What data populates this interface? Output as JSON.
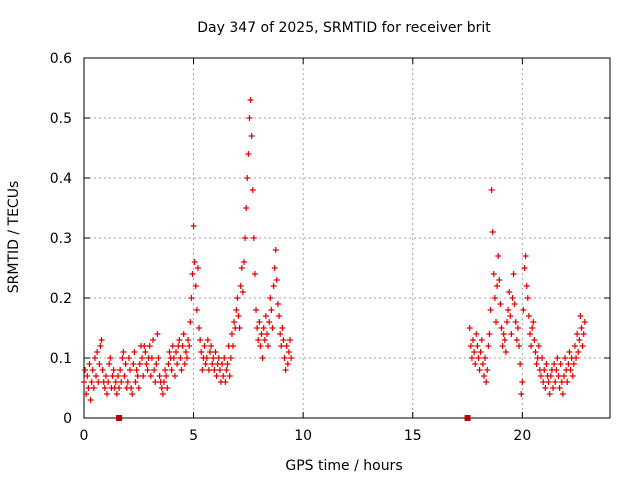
{
  "chart_data": {
    "type": "scatter",
    "title": "Day 347 of 2025, SRMTID for receiver brit",
    "xlabel": "GPS time / hours",
    "ylabel": "SRMTID / TECUs",
    "xlim": [
      0,
      24
    ],
    "ylim": [
      0,
      0.6
    ],
    "x_ticks": [
      0,
      5,
      10,
      15,
      20
    ],
    "x_tick_labels": [
      "0",
      "5",
      "10",
      "15",
      "20"
    ],
    "y_ticks": [
      0,
      0.1,
      0.2,
      0.3,
      0.4,
      0.5,
      0.6
    ],
    "y_tick_labels": [
      "0",
      "0.1",
      "0.2",
      "0.3",
      "0.4",
      "0.5",
      "0.6"
    ],
    "grid": true,
    "marker": "+",
    "color": "#e00000",
    "series": [
      {
        "name": "SRMTID",
        "points": [
          [
            0.0,
            0.06
          ],
          [
            0.05,
            0.08
          ],
          [
            0.1,
            0.04
          ],
          [
            0.15,
            0.07
          ],
          [
            0.2,
            0.05
          ],
          [
            0.25,
            0.09
          ],
          [
            0.3,
            0.03
          ],
          [
            0.35,
            0.06
          ],
          [
            0.4,
            0.08
          ],
          [
            0.45,
            0.05
          ],
          [
            0.5,
            0.1
          ],
          [
            0.55,
            0.07
          ],
          [
            0.6,
            0.11
          ],
          [
            0.65,
            0.06
          ],
          [
            0.7,
            0.09
          ],
          [
            0.75,
            0.12
          ],
          [
            0.8,
            0.13
          ],
          [
            0.85,
            0.08
          ],
          [
            0.9,
            0.06
          ],
          [
            0.95,
            0.05
          ],
          [
            1.0,
            0.07
          ],
          [
            1.05,
            0.04
          ],
          [
            1.1,
            0.06
          ],
          [
            1.15,
            0.09
          ],
          [
            1.2,
            0.1
          ],
          [
            1.25,
            0.05
          ],
          [
            1.3,
            0.07
          ],
          [
            1.35,
            0.08
          ],
          [
            1.4,
            0.05
          ],
          [
            1.45,
            0.06
          ],
          [
            1.5,
            0.04
          ],
          [
            1.55,
            0.07
          ],
          [
            1.6,
            0.05
          ],
          [
            1.65,
            0.08
          ],
          [
            1.7,
            0.06
          ],
          [
            1.75,
            0.1
          ],
          [
            1.8,
            0.11
          ],
          [
            1.85,
            0.07
          ],
          [
            1.9,
            0.09
          ],
          [
            1.95,
            0.05
          ],
          [
            2.0,
            0.06
          ],
          [
            2.05,
            0.1
          ],
          [
            2.1,
            0.08
          ],
          [
            2.15,
            0.05
          ],
          [
            2.2,
            0.04
          ],
          [
            2.25,
            0.09
          ],
          [
            2.3,
            0.11
          ],
          [
            2.35,
            0.06
          ],
          [
            2.4,
            0.08
          ],
          [
            2.45,
            0.07
          ],
          [
            2.5,
            0.05
          ],
          [
            2.55,
            0.09
          ],
          [
            2.6,
            0.12
          ],
          [
            2.65,
            0.1
          ],
          [
            2.7,
            0.07
          ],
          [
            2.75,
            0.12
          ],
          [
            2.8,
            0.11
          ],
          [
            2.85,
            0.09
          ],
          [
            2.9,
            0.08
          ],
          [
            2.95,
            0.1
          ],
          [
            3.0,
            0.12
          ],
          [
            3.05,
            0.07
          ],
          [
            3.1,
            0.1
          ],
          [
            3.15,
            0.13
          ],
          [
            3.2,
            0.08
          ],
          [
            3.25,
            0.06
          ],
          [
            3.3,
            0.09
          ],
          [
            3.35,
            0.14
          ],
          [
            3.4,
            0.1
          ],
          [
            3.45,
            0.07
          ],
          [
            3.5,
            0.06
          ],
          [
            3.55,
            0.05
          ],
          [
            3.6,
            0.04
          ],
          [
            3.65,
            0.06
          ],
          [
            3.7,
            0.08
          ],
          [
            3.75,
            0.07
          ],
          [
            3.8,
            0.05
          ],
          [
            3.85,
            0.09
          ],
          [
            3.9,
            0.11
          ],
          [
            3.95,
            0.1
          ],
          [
            4.0,
            0.08
          ],
          [
            4.05,
            0.12
          ],
          [
            4.1,
            0.1
          ],
          [
            4.15,
            0.07
          ],
          [
            4.2,
            0.11
          ],
          [
            4.25,
            0.09
          ],
          [
            4.3,
            0.12
          ],
          [
            4.35,
            0.13
          ],
          [
            4.4,
            0.1
          ],
          [
            4.45,
            0.08
          ],
          [
            4.5,
            0.12
          ],
          [
            4.55,
            0.14
          ],
          [
            4.6,
            0.09
          ],
          [
            4.65,
            0.11
          ],
          [
            4.7,
            0.1
          ],
          [
            4.75,
            0.13
          ],
          [
            4.8,
            0.12
          ],
          [
            4.85,
            0.16
          ],
          [
            4.9,
            0.2
          ],
          [
            4.95,
            0.24
          ],
          [
            5.0,
            0.32
          ],
          [
            5.05,
            0.26
          ],
          [
            5.1,
            0.22
          ],
          [
            5.15,
            0.18
          ],
          [
            5.2,
            0.25
          ],
          [
            5.25,
            0.15
          ],
          [
            5.3,
            0.13
          ],
          [
            5.35,
            0.11
          ],
          [
            5.4,
            0.08
          ],
          [
            5.45,
            0.1
          ],
          [
            5.5,
            0.12
          ],
          [
            5.55,
            0.09
          ],
          [
            5.6,
            0.1
          ],
          [
            5.65,
            0.13
          ],
          [
            5.7,
            0.08
          ],
          [
            5.75,
            0.11
          ],
          [
            5.8,
            0.12
          ],
          [
            5.85,
            0.09
          ],
          [
            5.9,
            0.1
          ],
          [
            5.95,
            0.08
          ],
          [
            6.0,
            0.11
          ],
          [
            6.05,
            0.07
          ],
          [
            6.1,
            0.09
          ],
          [
            6.15,
            0.1
          ],
          [
            6.2,
            0.08
          ],
          [
            6.25,
            0.06
          ],
          [
            6.3,
            0.09
          ],
          [
            6.35,
            0.07
          ],
          [
            6.4,
            0.1
          ],
          [
            6.45,
            0.06
          ],
          [
            6.5,
            0.08
          ],
          [
            6.55,
            0.09
          ],
          [
            6.6,
            0.12
          ],
          [
            6.65,
            0.07
          ],
          [
            6.7,
            0.1
          ],
          [
            6.75,
            0.14
          ],
          [
            6.8,
            0.12
          ],
          [
            6.85,
            0.16
          ],
          [
            6.9,
            0.15
          ],
          [
            6.95,
            0.18
          ],
          [
            7.0,
            0.2
          ],
          [
            7.05,
            0.17
          ],
          [
            7.1,
            0.15
          ],
          [
            7.15,
            0.22
          ],
          [
            7.2,
            0.25
          ],
          [
            7.25,
            0.21
          ],
          [
            7.3,
            0.26
          ],
          [
            7.35,
            0.3
          ],
          [
            7.4,
            0.35
          ],
          [
            7.45,
            0.4
          ],
          [
            7.5,
            0.44
          ],
          [
            7.55,
            0.5
          ],
          [
            7.6,
            0.53
          ],
          [
            7.65,
            0.47
          ],
          [
            7.7,
            0.38
          ],
          [
            7.75,
            0.3
          ],
          [
            7.8,
            0.24
          ],
          [
            7.85,
            0.18
          ],
          [
            7.9,
            0.15
          ],
          [
            7.95,
            0.13
          ],
          [
            8.0,
            0.16
          ],
          [
            8.05,
            0.12
          ],
          [
            8.1,
            0.14
          ],
          [
            8.15,
            0.1
          ],
          [
            8.2,
            0.15
          ],
          [
            8.25,
            0.13
          ],
          [
            8.3,
            0.17
          ],
          [
            8.35,
            0.14
          ],
          [
            8.4,
            0.12
          ],
          [
            8.45,
            0.16
          ],
          [
            8.5,
            0.2
          ],
          [
            8.55,
            0.18
          ],
          [
            8.6,
            0.15
          ],
          [
            8.65,
            0.22
          ],
          [
            8.7,
            0.25
          ],
          [
            8.75,
            0.28
          ],
          [
            8.8,
            0.23
          ],
          [
            8.85,
            0.19
          ],
          [
            8.9,
            0.17
          ],
          [
            8.95,
            0.14
          ],
          [
            9.0,
            0.12
          ],
          [
            9.05,
            0.15
          ],
          [
            9.1,
            0.13
          ],
          [
            9.15,
            0.1
          ],
          [
            9.2,
            0.08
          ],
          [
            9.25,
            0.12
          ],
          [
            9.3,
            0.09
          ],
          [
            9.35,
            0.11
          ],
          [
            9.4,
            0.13
          ],
          [
            9.45,
            0.1
          ],
          [
            17.6,
            0.15
          ],
          [
            17.65,
            0.12
          ],
          [
            17.7,
            0.1
          ],
          [
            17.75,
            0.13
          ],
          [
            17.8,
            0.11
          ],
          [
            17.85,
            0.09
          ],
          [
            17.9,
            0.14
          ],
          [
            17.95,
            0.12
          ],
          [
            18.0,
            0.1
          ],
          [
            18.05,
            0.08
          ],
          [
            18.1,
            0.11
          ],
          [
            18.15,
            0.13
          ],
          [
            18.2,
            0.09
          ],
          [
            18.25,
            0.07
          ],
          [
            18.3,
            0.1
          ],
          [
            18.35,
            0.06
          ],
          [
            18.4,
            0.08
          ],
          [
            18.45,
            0.12
          ],
          [
            18.5,
            0.14
          ],
          [
            18.55,
            0.18
          ],
          [
            18.6,
            0.38
          ],
          [
            18.65,
            0.31
          ],
          [
            18.7,
            0.24
          ],
          [
            18.75,
            0.2
          ],
          [
            18.8,
            0.16
          ],
          [
            18.85,
            0.22
          ],
          [
            18.9,
            0.27
          ],
          [
            18.95,
            0.23
          ],
          [
            19.0,
            0.19
          ],
          [
            19.05,
            0.15
          ],
          [
            19.1,
            0.12
          ],
          [
            19.15,
            0.14
          ],
          [
            19.2,
            0.13
          ],
          [
            19.25,
            0.11
          ],
          [
            19.3,
            0.16
          ],
          [
            19.35,
            0.18
          ],
          [
            19.4,
            0.21
          ],
          [
            19.45,
            0.17
          ],
          [
            19.5,
            0.14
          ],
          [
            19.55,
            0.2
          ],
          [
            19.6,
            0.24
          ],
          [
            19.65,
            0.19
          ],
          [
            19.7,
            0.16
          ],
          [
            19.75,
            0.13
          ],
          [
            19.8,
            0.15
          ],
          [
            19.85,
            0.12
          ],
          [
            19.9,
            0.09
          ],
          [
            19.95,
            0.04
          ],
          [
            20.0,
            0.06
          ],
          [
            20.05,
            0.18
          ],
          [
            20.1,
            0.25
          ],
          [
            20.15,
            0.27
          ],
          [
            20.2,
            0.22
          ],
          [
            20.25,
            0.2
          ],
          [
            20.3,
            0.17
          ],
          [
            20.35,
            0.14
          ],
          [
            20.4,
            0.12
          ],
          [
            20.45,
            0.15
          ],
          [
            20.5,
            0.16
          ],
          [
            20.55,
            0.13
          ],
          [
            20.6,
            0.11
          ],
          [
            20.65,
            0.09
          ],
          [
            20.7,
            0.1
          ],
          [
            20.75,
            0.12
          ],
          [
            20.8,
            0.08
          ],
          [
            20.85,
            0.07
          ],
          [
            20.9,
            0.1
          ],
          [
            20.95,
            0.06
          ],
          [
            21.0,
            0.08
          ],
          [
            21.05,
            0.05
          ],
          [
            21.1,
            0.09
          ],
          [
            21.15,
            0.07
          ],
          [
            21.2,
            0.06
          ],
          [
            21.25,
            0.04
          ],
          [
            21.3,
            0.07
          ],
          [
            21.35,
            0.08
          ],
          [
            21.4,
            0.05
          ],
          [
            21.45,
            0.09
          ],
          [
            21.5,
            0.06
          ],
          [
            21.55,
            0.08
          ],
          [
            21.6,
            0.1
          ],
          [
            21.65,
            0.07
          ],
          [
            21.7,
            0.05
          ],
          [
            21.75,
            0.09
          ],
          [
            21.8,
            0.06
          ],
          [
            21.85,
            0.04
          ],
          [
            21.9,
            0.07
          ],
          [
            21.95,
            0.1
          ],
          [
            22.0,
            0.08
          ],
          [
            22.05,
            0.06
          ],
          [
            22.1,
            0.09
          ],
          [
            22.15,
            0.11
          ],
          [
            22.2,
            0.08
          ],
          [
            22.25,
            0.1
          ],
          [
            22.3,
            0.07
          ],
          [
            22.35,
            0.09
          ],
          [
            22.4,
            0.12
          ],
          [
            22.45,
            0.1
          ],
          [
            22.5,
            0.14
          ],
          [
            22.55,
            0.11
          ],
          [
            22.6,
            0.13
          ],
          [
            22.65,
            0.17
          ],
          [
            22.7,
            0.15
          ],
          [
            22.75,
            0.12
          ],
          [
            22.8,
            0.14
          ],
          [
            22.85,
            0.16
          ]
        ]
      }
    ],
    "gap_markers": [
      {
        "x": 1.6,
        "y": 0.0
      },
      {
        "x": 17.5,
        "y": 0.0
      }
    ]
  }
}
